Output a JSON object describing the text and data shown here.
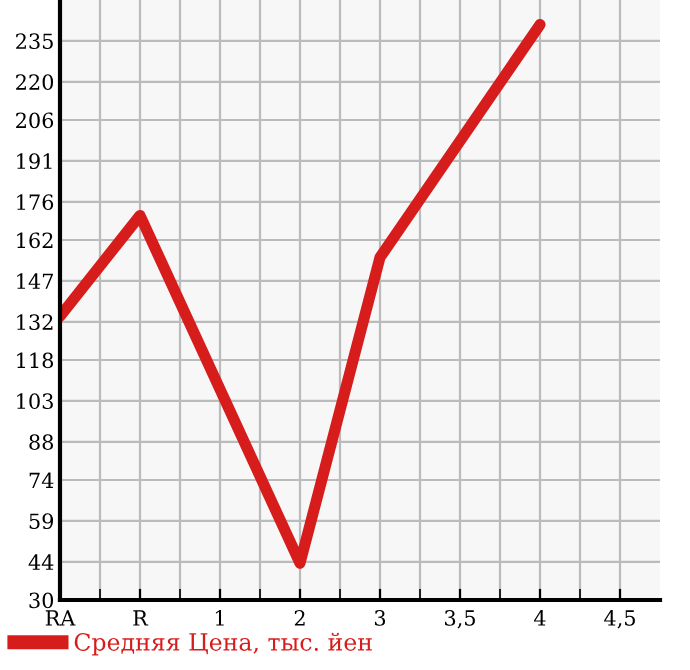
{
  "chart_data": {
    "type": "line",
    "categories": [
      "RA",
      "R",
      "1",
      "2",
      "3",
      "3,5",
      "4",
      "4,5"
    ],
    "series": [
      {
        "name": "Средняя Цена, тыс. йен",
        "color": "#d71c1c",
        "values": [
          134,
          171,
          null,
          43.5,
          155.6,
          null,
          241,
          null
        ]
      }
    ],
    "ylim": [
      30,
      250
    ],
    "yticks": [
      30,
      44,
      59,
      74,
      88,
      103,
      118,
      132,
      147,
      162,
      176,
      191,
      206,
      220,
      235
    ],
    "grid": true,
    "legend": "bottom",
    "marker": "none",
    "line_style": "solid"
  }
}
